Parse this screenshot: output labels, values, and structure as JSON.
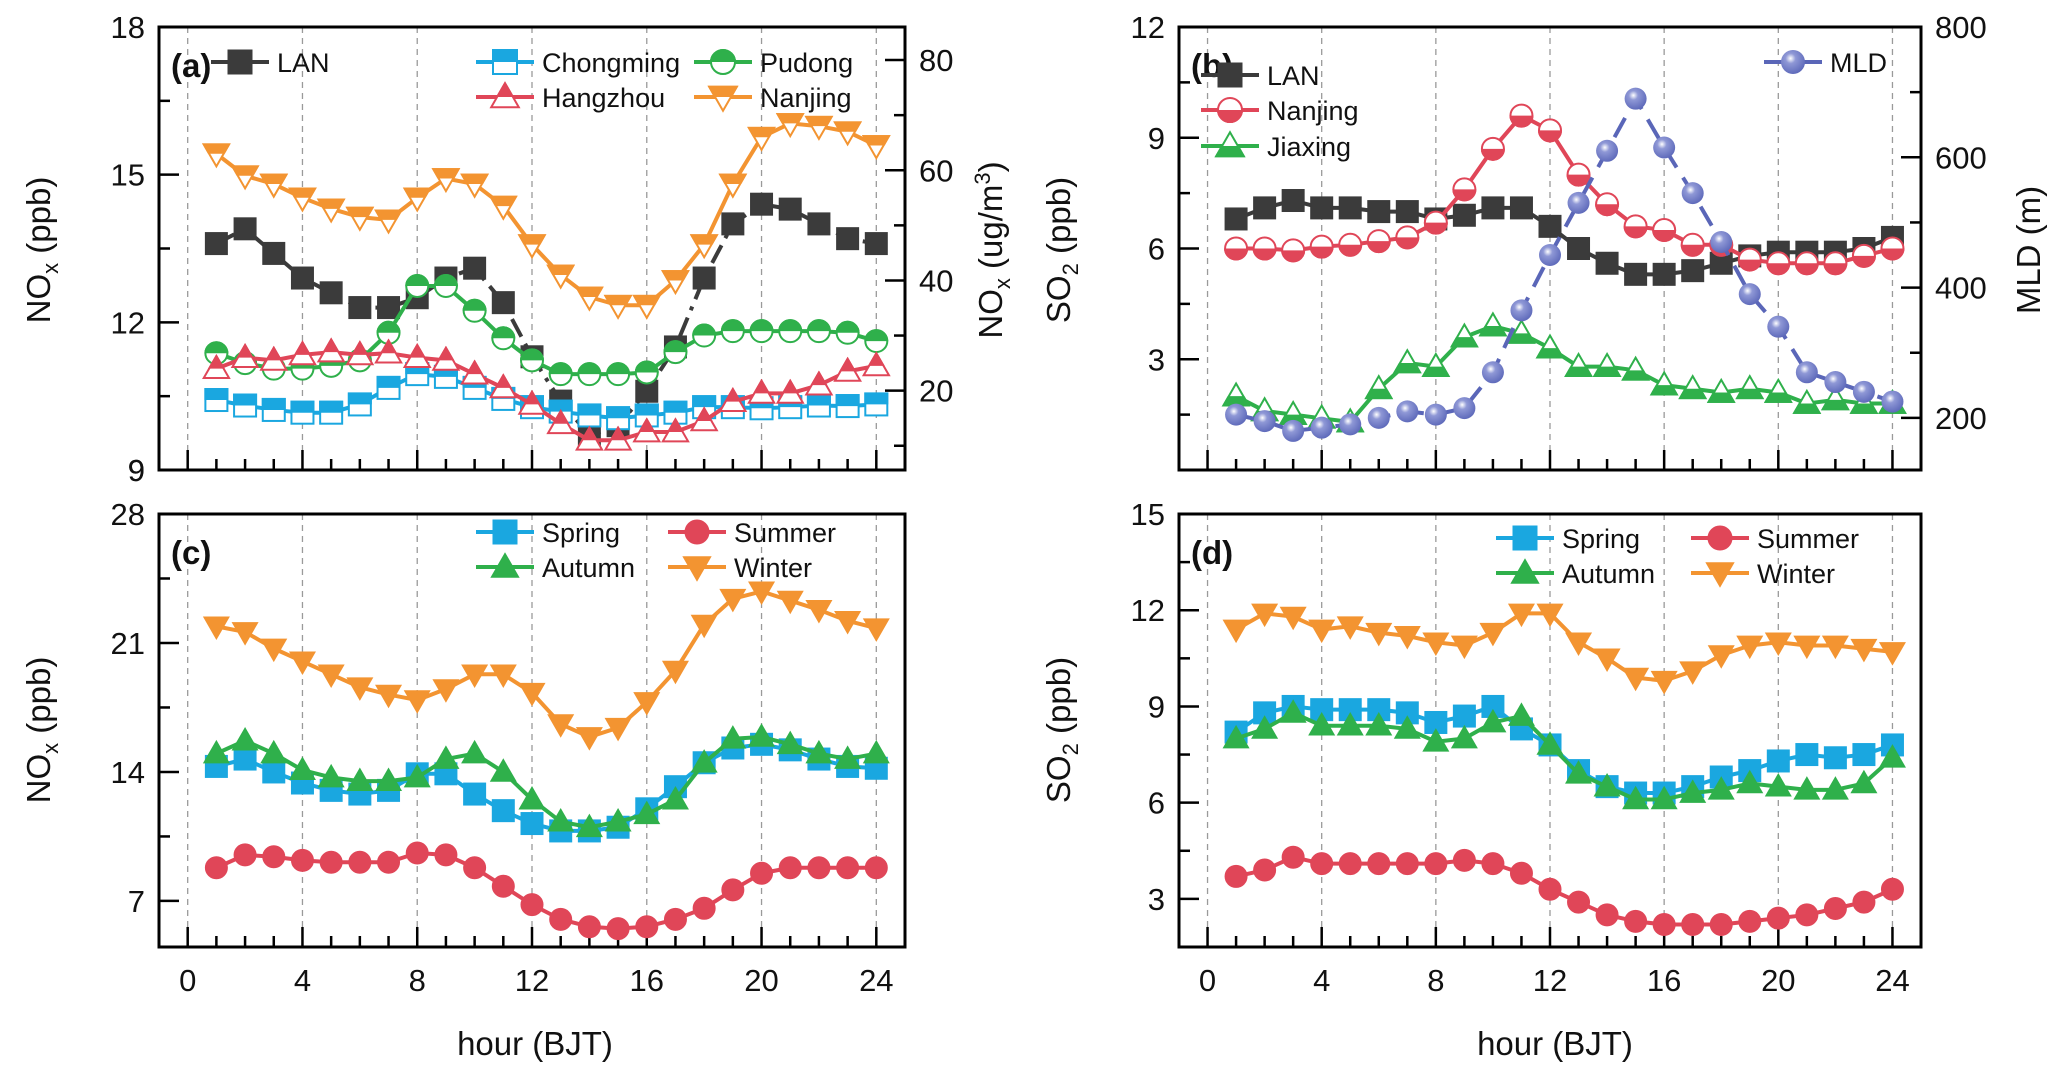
{
  "chart_data": [
    {
      "id": "a",
      "type": "line",
      "panel_label": "(a)",
      "xlabel": "",
      "ylabel": "NOx (ppb)",
      "y2label": "NOx (ug/m3)",
      "x": [
        1,
        2,
        3,
        4,
        5,
        6,
        7,
        8,
        9,
        10,
        11,
        12,
        13,
        14,
        15,
        16,
        17,
        18,
        19,
        20,
        21,
        22,
        23,
        24
      ],
      "xlim": [
        -1,
        25
      ],
      "xticks": [
        0,
        4,
        8,
        12,
        16,
        20,
        24
      ],
      "ylim": [
        9,
        18
      ],
      "yticks": [
        9,
        12,
        15,
        18
      ],
      "y2lim": [
        5.6,
        86
      ],
      "y2ticks": [
        20,
        40,
        60,
        80
      ],
      "grid": "vertical-dashed",
      "legend": "top",
      "series": [
        {
          "name": "LAN",
          "axis": "left",
          "color": "#3b3b3b",
          "marker": "square",
          "fill": "full",
          "dash": "dashdot",
          "values": [
            13.6,
            13.9,
            13.4,
            12.9,
            12.6,
            12.3,
            12.3,
            12.5,
            12.9,
            13.1,
            12.4,
            11.3,
            10.4,
            9.7,
            9.9,
            10.6,
            11.5,
            12.9,
            14.0,
            14.4,
            14.3,
            14.0,
            13.7,
            13.6
          ]
        },
        {
          "name": "Chongming",
          "axis": "right",
          "color": "#1aa7e0",
          "marker": "square",
          "fill": "half-top",
          "values": [
            18.3,
            17.3,
            16.5,
            16.0,
            16.0,
            17.5,
            20.5,
            23.0,
            22.5,
            20.5,
            18.5,
            17.0,
            16.2,
            15.5,
            15.0,
            15.5,
            16.0,
            17.0,
            17.0,
            16.8,
            17.0,
            17.3,
            17.2,
            17.5
          ]
        },
        {
          "name": "Pudong",
          "axis": "right",
          "color": "#2fb04b",
          "marker": "circle",
          "fill": "half-top",
          "values": [
            26.8,
            25.0,
            24.0,
            24.0,
            24.5,
            25.5,
            30.5,
            39.0,
            39.0,
            34.5,
            29.5,
            25.5,
            23.0,
            23.0,
            23.0,
            23.3,
            27.0,
            30.0,
            30.8,
            30.8,
            30.8,
            30.8,
            30.5,
            29.0
          ]
        },
        {
          "name": "Hangzhou",
          "axis": "right",
          "color": "#e04658",
          "marker": "triangle-up",
          "fill": "half-top",
          "values": [
            24.0,
            26.0,
            25.5,
            26.5,
            27.0,
            26.5,
            26.8,
            26.0,
            25.5,
            23.0,
            20.5,
            17.5,
            14.0,
            11.0,
            11.0,
            12.5,
            12.5,
            14.5,
            18.0,
            19.5,
            19.5,
            21.0,
            23.5,
            24.5
          ]
        },
        {
          "name": "Nanjing",
          "axis": "right",
          "color": "#f39431",
          "marker": "triangle-down",
          "fill": "half-top",
          "values": [
            63.0,
            59.0,
            57.5,
            55.0,
            53.0,
            51.5,
            51.0,
            55.0,
            58.5,
            57.5,
            53.5,
            46.5,
            41.0,
            37.0,
            35.5,
            35.5,
            40.0,
            46.5,
            57.5,
            66.0,
            68.5,
            68.0,
            67.0,
            64.5
          ]
        }
      ]
    },
    {
      "id": "b",
      "type": "line",
      "panel_label": "(b)",
      "xlabel": "",
      "ylabel": "SO2 (ppb)",
      "y2label": "MLD (m)",
      "x": [
        1,
        2,
        3,
        4,
        5,
        6,
        7,
        8,
        9,
        10,
        11,
        12,
        13,
        14,
        15,
        16,
        17,
        18,
        19,
        20,
        21,
        22,
        23,
        24
      ],
      "xlim": [
        -1,
        25
      ],
      "xticks": [
        0,
        4,
        8,
        12,
        16,
        20,
        24
      ],
      "ylim": [
        0.0,
        12
      ],
      "yticks": [
        3,
        6,
        9,
        12
      ],
      "y2lim": [
        120,
        800
      ],
      "y2ticks": [
        200,
        400,
        600,
        800
      ],
      "grid": "vertical-dashed",
      "legend": "top-left / top-right",
      "series": [
        {
          "name": "LAN",
          "axis": "left",
          "color": "#3b3b3b",
          "marker": "square",
          "fill": "full",
          "values": [
            6.8,
            7.1,
            7.3,
            7.1,
            7.1,
            7.0,
            7.0,
            6.8,
            6.9,
            7.1,
            7.1,
            6.6,
            6.0,
            5.6,
            5.3,
            5.3,
            5.4,
            5.6,
            5.8,
            5.9,
            5.9,
            5.9,
            6.0,
            6.3
          ]
        },
        {
          "name": "Nanjing",
          "axis": "left",
          "color": "#e04658",
          "marker": "circle",
          "fill": "half-bottom",
          "values": [
            6.0,
            6.0,
            5.95,
            6.05,
            6.1,
            6.2,
            6.3,
            6.7,
            7.6,
            8.7,
            9.6,
            9.2,
            8.0,
            7.2,
            6.6,
            6.5,
            6.1,
            6.1,
            5.7,
            5.6,
            5.6,
            5.6,
            5.8,
            6.0
          ]
        },
        {
          "name": "Jiaxing",
          "axis": "left",
          "color": "#2fb04b",
          "marker": "triangle-up",
          "fill": "half-bottom",
          "values": [
            2.0,
            1.6,
            1.5,
            1.4,
            1.3,
            2.2,
            2.9,
            2.8,
            3.6,
            3.9,
            3.7,
            3.3,
            2.8,
            2.8,
            2.7,
            2.3,
            2.2,
            2.1,
            2.2,
            2.1,
            1.8,
            1.9,
            1.8,
            1.8
          ]
        },
        {
          "name": "MLD",
          "axis": "right",
          "color": "#5a66b8",
          "marker": "sphere",
          "fill": "full",
          "dash": "dashed",
          "values": [
            205,
            195,
            180,
            185,
            190,
            200,
            210,
            205,
            215,
            270,
            365,
            450,
            530,
            610,
            690,
            615,
            545,
            470,
            390,
            340,
            270,
            255,
            240,
            225
          ]
        }
      ]
    },
    {
      "id": "c",
      "type": "line",
      "panel_label": "(c)",
      "xlabel": "hour (BJT)",
      "ylabel": "NOx (ppb)",
      "x": [
        1,
        2,
        3,
        4,
        5,
        6,
        7,
        8,
        9,
        10,
        11,
        12,
        13,
        14,
        15,
        16,
        17,
        18,
        19,
        20,
        21,
        22,
        23,
        24
      ],
      "xlim": [
        -1,
        25
      ],
      "xticks": [
        0,
        4,
        8,
        12,
        16,
        20,
        24
      ],
      "xticklabels": [
        "0",
        "4",
        "8",
        "12",
        "16",
        "20",
        "24"
      ],
      "ylim": [
        4.5,
        28
      ],
      "yticks": [
        7,
        14,
        21,
        28
      ],
      "grid": "vertical-dashed",
      "legend": "top-right",
      "series": [
        {
          "name": "Spring",
          "color": "#1aa7e0",
          "marker": "square",
          "fill": "full",
          "values": [
            14.3,
            14.7,
            14.0,
            13.4,
            13.0,
            12.8,
            13.0,
            13.9,
            13.9,
            12.8,
            11.9,
            11.2,
            10.8,
            10.8,
            11.0,
            12.0,
            13.2,
            14.5,
            15.3,
            15.5,
            15.2,
            14.7,
            14.3,
            14.2
          ]
        },
        {
          "name": "Summer",
          "color": "#e04658",
          "marker": "circle",
          "fill": "full",
          "values": [
            8.8,
            9.5,
            9.4,
            9.2,
            9.1,
            9.1,
            9.1,
            9.6,
            9.5,
            8.8,
            7.8,
            6.8,
            6.0,
            5.6,
            5.5,
            5.6,
            6.0,
            6.6,
            7.6,
            8.5,
            8.8,
            8.8,
            8.8,
            8.8
          ]
        },
        {
          "name": "Autumn",
          "color": "#2fb04b",
          "marker": "triangle-up",
          "fill": "full",
          "values": [
            15.0,
            15.7,
            15.0,
            14.1,
            13.7,
            13.5,
            13.5,
            13.7,
            14.7,
            15.0,
            14.0,
            12.5,
            11.3,
            11.0,
            11.3,
            11.7,
            12.5,
            14.5,
            15.8,
            15.9,
            15.5,
            15.0,
            14.7,
            15.0
          ]
        },
        {
          "name": "Winter",
          "color": "#f39431",
          "marker": "triangle-down",
          "fill": "full",
          "values": [
            21.9,
            21.6,
            20.7,
            20.0,
            19.3,
            18.6,
            18.2,
            17.9,
            18.5,
            19.3,
            19.3,
            18.3,
            16.6,
            15.9,
            16.4,
            17.8,
            19.5,
            22.0,
            23.4,
            23.8,
            23.3,
            22.8,
            22.2,
            21.8
          ]
        }
      ]
    },
    {
      "id": "d",
      "type": "line",
      "panel_label": "(d)",
      "xlabel": "hour (BJT)",
      "ylabel": "SO2 (ppb)",
      "x": [
        1,
        2,
        3,
        4,
        5,
        6,
        7,
        8,
        9,
        10,
        11,
        12,
        13,
        14,
        15,
        16,
        17,
        18,
        19,
        20,
        21,
        22,
        23,
        24
      ],
      "xlim": [
        -1,
        25
      ],
      "xticks": [
        0,
        4,
        8,
        12,
        16,
        20,
        24
      ],
      "xticklabels": [
        "0",
        "4",
        "8",
        "12",
        "16",
        "20",
        "24"
      ],
      "ylim": [
        1.5,
        15
      ],
      "yticks": [
        3,
        6,
        9,
        12,
        15
      ],
      "grid": "vertical-dashed",
      "legend": "top-right",
      "series": [
        {
          "name": "Spring",
          "color": "#1aa7e0",
          "marker": "square",
          "fill": "full",
          "values": [
            8.2,
            8.8,
            9.0,
            8.9,
            8.9,
            8.9,
            8.8,
            8.5,
            8.7,
            9.0,
            8.3,
            7.8,
            7.0,
            6.5,
            6.3,
            6.3,
            6.5,
            6.8,
            7.0,
            7.3,
            7.5,
            7.4,
            7.5,
            7.8
          ]
        },
        {
          "name": "Summer",
          "color": "#e04658",
          "marker": "circle",
          "fill": "full",
          "values": [
            3.7,
            3.9,
            4.3,
            4.1,
            4.1,
            4.1,
            4.1,
            4.1,
            4.2,
            4.1,
            3.8,
            3.3,
            2.9,
            2.5,
            2.3,
            2.2,
            2.2,
            2.2,
            2.3,
            2.4,
            2.5,
            2.7,
            2.9,
            3.3
          ]
        },
        {
          "name": "Autumn",
          "color": "#2fb04b",
          "marker": "triangle-up",
          "fill": "full",
          "values": [
            8.0,
            8.3,
            8.8,
            8.4,
            8.4,
            8.4,
            8.3,
            7.9,
            8.0,
            8.5,
            8.7,
            7.8,
            6.9,
            6.5,
            6.1,
            6.1,
            6.3,
            6.4,
            6.6,
            6.5,
            6.4,
            6.4,
            6.6,
            7.4
          ]
        },
        {
          "name": "Winter",
          "color": "#f39431",
          "marker": "triangle-down",
          "fill": "full",
          "values": [
            11.4,
            11.9,
            11.8,
            11.4,
            11.5,
            11.3,
            11.2,
            11.0,
            10.9,
            11.3,
            11.9,
            11.9,
            11.0,
            10.5,
            9.9,
            9.8,
            10.1,
            10.6,
            10.9,
            11.0,
            10.9,
            10.9,
            10.8,
            10.7
          ]
        }
      ]
    }
  ],
  "labels": {
    "a_ylabel_main": "NO",
    "a_ylabel_sub": "x",
    "a_ylabel_unit": " (ppb)",
    "a_y2label_main": "NO",
    "a_y2label_sub": "x",
    "a_y2label_unit": " (ug/m",
    "a_y2label_sup": "3",
    "a_y2label_close": ")",
    "b_ylabel_main": "SO",
    "b_ylabel_sub": "2",
    "b_ylabel_unit": " (ppb)",
    "b_y2label": "MLD (m)",
    "c_ylabel_main": "NO",
    "c_ylabel_sub": "x",
    "c_ylabel_unit": " (ppb)",
    "d_ylabel_main": "SO",
    "d_ylabel_sub": "2",
    "d_ylabel_unit": " (ppb)",
    "xlabel": "hour (BJT)"
  }
}
